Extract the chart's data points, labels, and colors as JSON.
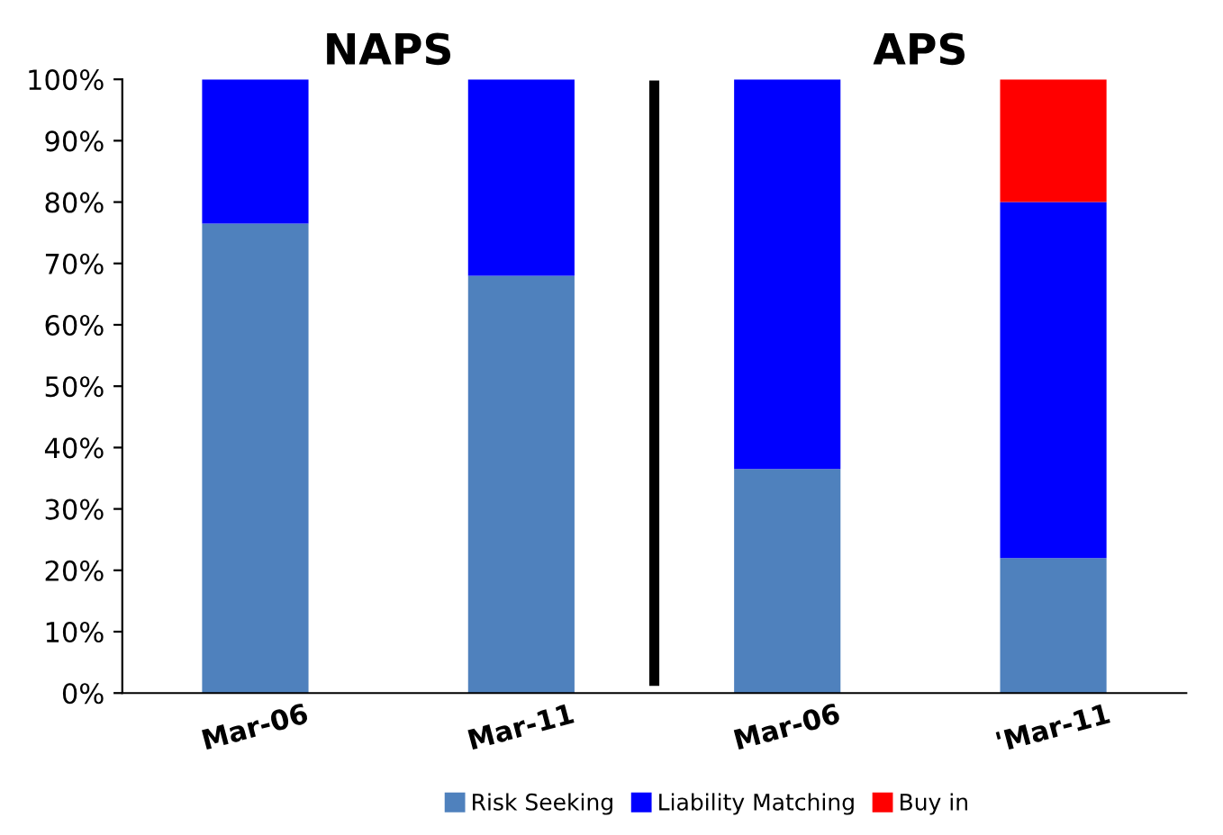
{
  "chart_data": {
    "type": "bar",
    "stacked": true,
    "categories": [
      "Mar-06",
      "Mar-11",
      "Mar-06",
      "'Mar-11"
    ],
    "series": [
      {
        "name": "Risk Seeking",
        "color": "#4f81bd",
        "values": [
          76.5,
          68,
          36.5,
          22
        ]
      },
      {
        "name": "Liability Matching",
        "color": "#0000ff",
        "values": [
          23.5,
          32,
          63.5,
          58
        ]
      },
      {
        "name": "Buy in",
        "color": "#ff0000",
        "values": [
          0,
          0,
          0,
          20
        ]
      }
    ],
    "ylim": [
      0,
      100
    ],
    "yticks": [
      {
        "value": 0,
        "label": "0%"
      },
      {
        "value": 10,
        "label": "10%"
      },
      {
        "value": 20,
        "label": "20%"
      },
      {
        "value": 30,
        "label": "30%"
      },
      {
        "value": 40,
        "label": "40%"
      },
      {
        "value": 50,
        "label": "50%"
      },
      {
        "value": 60,
        "label": "60%"
      },
      {
        "value": 70,
        "label": "70%"
      },
      {
        "value": 80,
        "label": "80%"
      },
      {
        "value": 90,
        "label": "90%"
      },
      {
        "value": 100,
        "label": "100%"
      }
    ],
    "annotations": [
      "NAPS",
      "APS"
    ],
    "grid": false,
    "legend": "bottom"
  }
}
